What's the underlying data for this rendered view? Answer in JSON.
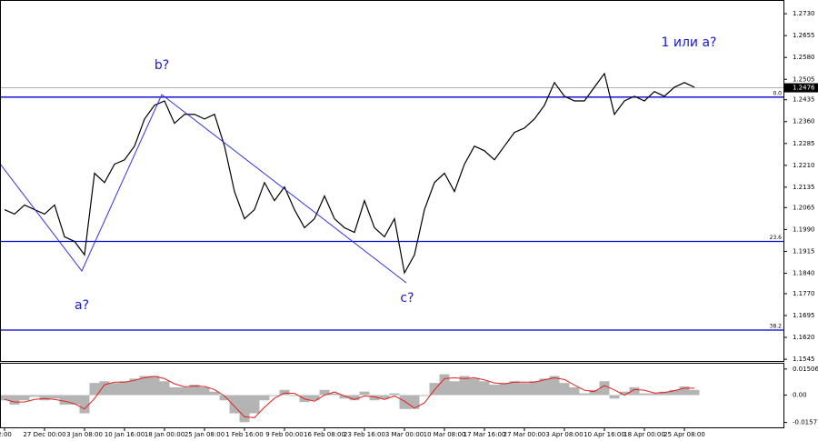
{
  "chart_data": [
    {
      "type": "line",
      "color": "#000000",
      "categories": [
        "2:00",
        null,
        null,
        null,
        "27 Dec 00:00",
        null,
        null,
        null,
        "3 Jan 08:00",
        null,
        null,
        null,
        "10 Jan 16:00",
        null,
        null,
        null,
        "18 Jan 00:00",
        null,
        null,
        null,
        "25 Jan 08:00",
        null,
        null,
        null,
        "1 Feb 16:00",
        null,
        null,
        null,
        "9 Feb 00:00",
        null,
        null,
        null,
        "16 Feb 08:00",
        null,
        null,
        null,
        "23 Feb 16:00",
        null,
        null,
        null,
        "3 Mar 00:00",
        null,
        null,
        null,
        "10 Mar 08:00",
        null,
        null,
        null,
        "17 Mar 16:00",
        null,
        null,
        null,
        "27 Mar 00:00",
        null,
        null,
        null,
        "3 Apr 08:00",
        null,
        null,
        null,
        "10 Apr 16:00",
        null,
        null,
        null,
        "18 Apr 00:00",
        null,
        null,
        null,
        "25 Apr 08:00",
        null
      ],
      "values": [
        1.2058,
        1.2043,
        1.2074,
        1.2058,
        1.2043,
        1.2074,
        1.1965,
        1.1949,
        1.1903,
        1.2183,
        1.2151,
        1.2214,
        1.2229,
        1.2276,
        1.2369,
        1.2416,
        1.2431,
        1.2354,
        1.2385,
        1.2385,
        1.2369,
        1.2385,
        1.2276,
        1.212,
        1.2027,
        1.2058,
        1.2151,
        1.2089,
        1.2136,
        1.2058,
        1.1996,
        1.2027,
        1.2105,
        1.2027,
        1.1996,
        1.198,
        1.2089,
        1.1996,
        1.1965,
        1.2027,
        1.1841,
        1.1903,
        1.2058,
        1.2151,
        1.2183,
        1.212,
        1.2214,
        1.2276,
        1.226,
        1.2229,
        1.2276,
        1.2323,
        1.2338,
        1.2369,
        1.2416,
        1.2494,
        1.2447,
        1.2431,
        1.2431,
        1.2478,
        1.2525,
        1.2385,
        1.2431,
        1.2447,
        1.2431,
        1.2463,
        1.2447,
        1.2478,
        1.2494,
        1.2478
      ],
      "ylim": [
        1.1539,
        1.2774
      ],
      "yticks": [
        {
          "value": 1.273,
          "label": "1.2730"
        },
        1.2655,
        {
          "value": 1.258,
          "label": "1.2580"
        },
        1.2505,
        1.2435,
        {
          "value": 1.236,
          "label": "1.2360"
        },
        1.2285,
        {
          "value": 1.221,
          "label": "1.2210"
        },
        1.2135,
        1.2065,
        {
          "value": 1.199,
          "label": "1.1990"
        },
        1.1915,
        {
          "value": 1.184,
          "label": "1.1840"
        },
        {
          "value": 1.177,
          "label": "1.1770"
        },
        1.1695,
        {
          "value": 1.162,
          "label": "1.1620"
        },
        1.1545
      ],
      "levels": [
        {
          "value": 1.2444,
          "label": "0.0"
        },
        {
          "value": 1.1949,
          "label": "23.6"
        },
        {
          "value": 1.1645,
          "label": "38.2"
        }
      ],
      "level_color": "#0000cc",
      "last": {
        "value": 1.2476,
        "label": "1.2476"
      },
      "annotations": [
        "b?",
        "a?",
        "c?",
        "1 или a?"
      ]
    },
    {
      "type": "bar",
      "series": [
        {
          "type": "bar",
          "color": "#b4b4b4",
          "values": [
            -0.003,
            -0.0055,
            -0.003,
            -0.001,
            -0.003,
            -0.002,
            -0.0055,
            -0.0055,
            -0.0105,
            0.007,
            0.008,
            0.007,
            0.008,
            0.0095,
            0.011,
            0.011,
            0.008,
            0.0045,
            0.0045,
            0.006,
            0.0045,
            0.002,
            -0.003,
            -0.0105,
            -0.0156,
            -0.0105,
            -0.003,
            -0.0005,
            0.003,
            -0.0005,
            -0.004,
            -0.003,
            0.003,
            0.001,
            -0.002,
            -0.003,
            0.002,
            -0.003,
            -0.002,
            0.001,
            -0.008,
            -0.008,
            -0.0005,
            0.007,
            0.012,
            0.008,
            0.011,
            0.0095,
            0.008,
            0.006,
            0.007,
            0.008,
            0.007,
            0.008,
            0.0095,
            0.011,
            0.007,
            0.0045,
            0.001,
            0.003,
            0.008,
            -0.002,
            0.002,
            0.0045,
            0.001,
            0.001,
            0.002,
            0.003,
            0.005,
            0.003
          ]
        },
        {
          "type": "line",
          "color": "#e02020",
          "values": [
            -0.0025,
            -0.004,
            -0.004,
            -0.0025,
            -0.002,
            -0.0025,
            -0.0035,
            -0.005,
            -0.008,
            -0.002,
            0.006,
            0.0075,
            0.0075,
            0.0085,
            0.01,
            0.0108,
            0.0095,
            0.0065,
            0.0048,
            0.0052,
            0.005,
            0.0032,
            -0.0005,
            -0.0065,
            -0.0125,
            -0.013,
            -0.007,
            -0.0018,
            0.0012,
            0.001,
            -0.0022,
            -0.0035,
            0,
            0.0018,
            -0.0005,
            -0.0025,
            -0.0005,
            -0.001,
            -0.0025,
            -0.0005,
            -0.0035,
            -0.0075,
            -0.0045,
            0.003,
            0.0095,
            0.01,
            0.0095,
            0.01,
            0.0088,
            0.007,
            0.0065,
            0.0075,
            0.0075,
            0.0075,
            0.0088,
            0.01,
            0.009,
            0.0058,
            0.0028,
            0.002,
            0.0055,
            0.003,
            0,
            0.0032,
            0.0028,
            0.0012,
            0.0015,
            0.0025,
            0.004,
            0.004
          ]
        }
      ],
      "ylim": [
        -0.0186,
        0.0181
      ],
      "yticks": [
        0.01506,
        {
          "value": 0,
          "label": "0.00"
        },
        -0.01577
      ]
    }
  ]
}
